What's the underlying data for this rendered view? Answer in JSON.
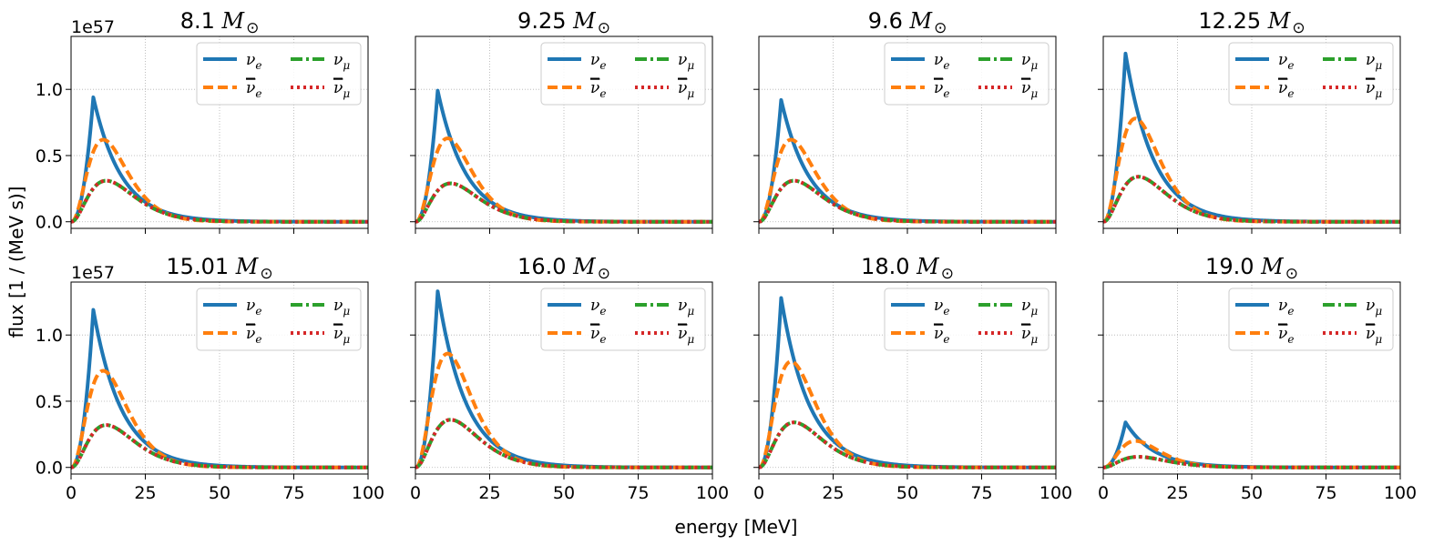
{
  "figure": {
    "xlabel": "energy [MeV]",
    "ylabel": "flux [1 / (MeV s)]",
    "scale_label": "1e57",
    "solar_mass_unit": "M",
    "solar_mass_symbol": "⊙"
  },
  "chart_data": {
    "type": "line",
    "layout": "2x4 grid of subplots",
    "x_ticks": [
      0,
      25,
      50,
      75,
      100
    ],
    "x_tick_labels": [
      "0",
      "25",
      "50",
      "75",
      "100"
    ],
    "y_ticks": [
      0.0,
      0.5,
      1.0
    ],
    "y_tick_labels": [
      "0.0",
      "0.5",
      "1.0"
    ],
    "xlim": [
      0,
      100
    ],
    "ylim": [
      -0.05,
      1.4
    ],
    "grid": true,
    "legend_placement": "upper right",
    "series_styles": [
      {
        "key": "nu_e",
        "color": "#1f77b4",
        "dash": "solid"
      },
      {
        "key": "nubar_e",
        "color": "#ff7f0e",
        "dash": "dashed"
      },
      {
        "key": "nu_mu",
        "color": "#2ca02c",
        "dash": "dashdot"
      },
      {
        "key": "nubar_mu",
        "color": "#d62728",
        "dash": "dotted"
      }
    ],
    "legend_entries": [
      {
        "symbol": "ν",
        "sub": "e",
        "bar": false,
        "color": "#1f77b4",
        "dash": "solid"
      },
      {
        "symbol": "ν",
        "sub": "e",
        "bar": true,
        "color": "#ff7f0e",
        "dash": "dashed"
      },
      {
        "symbol": "ν",
        "sub": "μ",
        "bar": false,
        "color": "#2ca02c",
        "dash": "dashdot"
      },
      {
        "symbol": "ν",
        "sub": "μ",
        "bar": true,
        "color": "#d62728",
        "dash": "dotted"
      }
    ],
    "panels": [
      {
        "mass": "8.1",
        "nu_e_peak": 0.94,
        "nubar_e_peak": 0.62,
        "nu_mu_peak": 0.31,
        "nubar_mu_peak": 0.31
      },
      {
        "mass": "9.25",
        "nu_e_peak": 0.99,
        "nubar_e_peak": 0.63,
        "nu_mu_peak": 0.29,
        "nubar_mu_peak": 0.29
      },
      {
        "mass": "9.6",
        "nu_e_peak": 0.92,
        "nubar_e_peak": 0.62,
        "nu_mu_peak": 0.31,
        "nubar_mu_peak": 0.31
      },
      {
        "mass": "12.25",
        "nu_e_peak": 1.27,
        "nubar_e_peak": 0.78,
        "nu_mu_peak": 0.34,
        "nubar_mu_peak": 0.34
      },
      {
        "mass": "15.01",
        "nu_e_peak": 1.19,
        "nubar_e_peak": 0.73,
        "nu_mu_peak": 0.32,
        "nubar_mu_peak": 0.32
      },
      {
        "mass": "16.0",
        "nu_e_peak": 1.33,
        "nubar_e_peak": 0.86,
        "nu_mu_peak": 0.36,
        "nubar_mu_peak": 0.36
      },
      {
        "mass": "18.0",
        "nu_e_peak": 1.28,
        "nubar_e_peak": 0.8,
        "nu_mu_peak": 0.34,
        "nubar_mu_peak": 0.34
      },
      {
        "mass": "19.0",
        "nu_e_peak": 0.34,
        "nubar_e_peak": 0.2,
        "nu_mu_peak": 0.08,
        "nubar_mu_peak": 0.08
      }
    ]
  }
}
